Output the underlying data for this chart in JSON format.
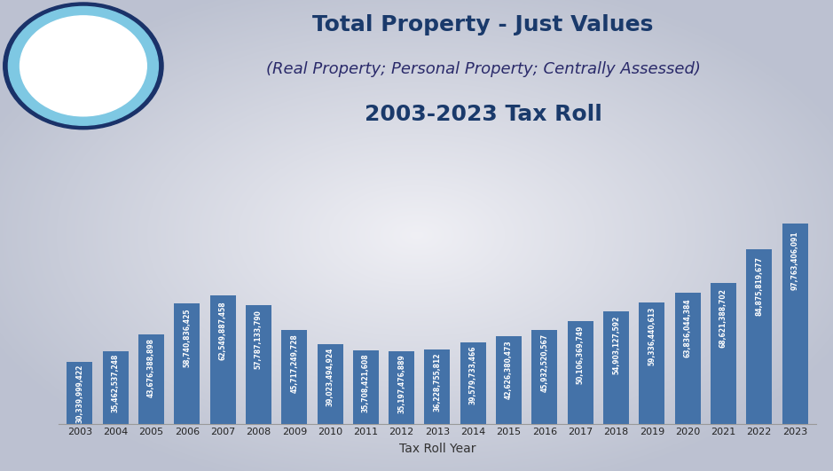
{
  "years": [
    2003,
    2004,
    2005,
    2006,
    2007,
    2008,
    2009,
    2010,
    2011,
    2012,
    2013,
    2014,
    2015,
    2016,
    2017,
    2018,
    2019,
    2020,
    2021,
    2022,
    2023
  ],
  "values": [
    30339999422,
    35462537248,
    43676388898,
    58740836425,
    62549887458,
    57787133790,
    45717249728,
    39023494924,
    35708421608,
    35197476889,
    36228755812,
    39579733466,
    42626380473,
    45932520567,
    50106369749,
    54903127592,
    59336440613,
    63836044384,
    68621388702,
    84875819677,
    97763406091
  ],
  "labels": [
    "30,339,999,422",
    "35,462,537,248",
    "43,676,388,898",
    "58,740,836,425",
    "62,549,887,458",
    "57,787,133,790",
    "45,717,249,728",
    "39,023,494,924",
    "35,708,421,608",
    "35,197,476,889",
    "36,228,755,812",
    "39,579,733,466",
    "42,626,380,473",
    "45,932,520,567",
    "50,106,369,749",
    "54,903,127,592",
    "59,336,440,613",
    "63,836,044,384",
    "68,621,388,702",
    "84,875,819,677",
    "97,763,406,091"
  ],
  "bar_color": "#4472a8",
  "bg_gradient_center": "#f0f0f0",
  "bg_gradient_edge": "#b0b8c8",
  "title_line1": "Total Property - Just Values",
  "title_line2": "(Real Property; Personal Property; Centrally Assessed)",
  "title_line3": "2003-2023 Tax Roll",
  "xlabel": "Tax Roll Year",
  "title_fontsize": 18,
  "subtitle_fontsize": 13,
  "subtitle2_fontsize": 18,
  "xlabel_fontsize": 10,
  "label_fontsize": 5.5
}
